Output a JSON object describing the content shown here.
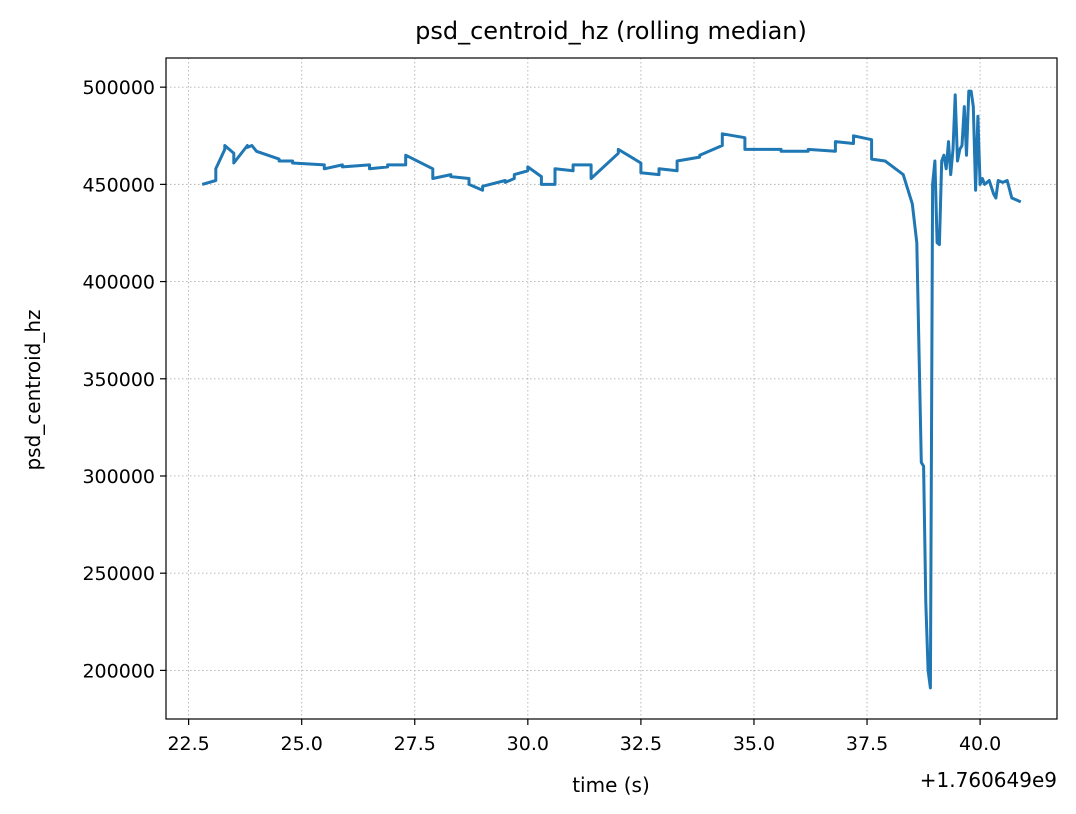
{
  "chart_data": {
    "type": "line",
    "title": "psd_centroid_hz (rolling median)",
    "xlabel": "time (s)",
    "ylabel": "psd_centroid_hz",
    "x_offset_label": "+1.760649e9",
    "xlim": [
      22.0,
      41.7
    ],
    "ylim": [
      175000,
      515000
    ],
    "grid": true,
    "x_ticks": [
      22.5,
      25.0,
      27.5,
      30.0,
      32.5,
      35.0,
      37.5,
      40.0
    ],
    "x_tick_labels": [
      "22.5",
      "25.0",
      "27.5",
      "30.0",
      "32.5",
      "35.0",
      "37.5",
      "40.0"
    ],
    "y_ticks": [
      200000,
      250000,
      300000,
      350000,
      400000,
      450000,
      500000
    ],
    "y_tick_labels": [
      "200000",
      "250000",
      "300000",
      "350000",
      "400000",
      "450000",
      "500000"
    ],
    "color": "#1f77b4",
    "series": [
      {
        "x": [
          22.8,
          23.1,
          23.1,
          23.3,
          23.3,
          23.5,
          23.5,
          23.8,
          23.8,
          23.9,
          24.0,
          24.5,
          24.5,
          24.8,
          24.8,
          25.5,
          25.5,
          25.9,
          25.9,
          26.5,
          26.5,
          26.9,
          26.9,
          27.3,
          27.3,
          27.9,
          27.9,
          28.3,
          28.3,
          28.7,
          28.7,
          29.0,
          29.0,
          29.5,
          29.5,
          29.7,
          29.7,
          30.0,
          30.0,
          30.3,
          30.3,
          30.6,
          30.6,
          31.0,
          31.0,
          31.4,
          31.4,
          32.0,
          32.0,
          32.5,
          32.5,
          32.9,
          32.9,
          33.3,
          33.3,
          33.8,
          33.8,
          34.3,
          34.3,
          34.8,
          34.8,
          35.6,
          35.6,
          36.2,
          36.2,
          36.8,
          36.8,
          37.2,
          37.2,
          37.6,
          37.6,
          37.9,
          37.9,
          38.3,
          38.5,
          38.6,
          38.7,
          38.75,
          38.8,
          38.85,
          38.9,
          38.95,
          39.0,
          39.05,
          39.1,
          39.15,
          39.2,
          39.25,
          39.3,
          39.35,
          39.4,
          39.45,
          39.5,
          39.55,
          39.6,
          39.65,
          39.7,
          39.75,
          39.8,
          39.85,
          39.9,
          39.95,
          40.0,
          40.05,
          40.1,
          40.2,
          40.3,
          40.35,
          40.4,
          40.5,
          40.6,
          40.7,
          40.8,
          40.9
        ],
        "y": [
          450000,
          452000,
          458000,
          468000,
          470000,
          466000,
          461000,
          470000,
          469000,
          470000,
          467000,
          463000,
          462000,
          462000,
          461000,
          460000,
          458000,
          460000,
          459000,
          460000,
          458000,
          459000,
          460000,
          460000,
          465000,
          458000,
          453000,
          455000,
          454000,
          453000,
          450000,
          447000,
          449000,
          452000,
          451000,
          453000,
          455000,
          457000,
          459000,
          454000,
          450000,
          450000,
          458000,
          457000,
          460000,
          460000,
          453000,
          466000,
          468000,
          461000,
          456000,
          455000,
          458000,
          457000,
          462000,
          464000,
          465000,
          470000,
          476000,
          474000,
          468000,
          468000,
          467000,
          467000,
          468000,
          467000,
          472000,
          471000,
          475000,
          473000,
          463000,
          462000,
          462000,
          455000,
          440000,
          420000,
          307000,
          305000,
          235000,
          200000,
          191000,
          450000,
          462000,
          420000,
          419000,
          462000,
          465000,
          458000,
          472000,
          455000,
          468000,
          496000,
          462000,
          468000,
          470000,
          490000,
          465000,
          498000,
          498000,
          490000,
          447000,
          485000,
          450000,
          453000,
          450000,
          452000,
          445000,
          443000,
          452000,
          451000,
          452000,
          443000,
          442000,
          441000
        ]
      }
    ]
  }
}
